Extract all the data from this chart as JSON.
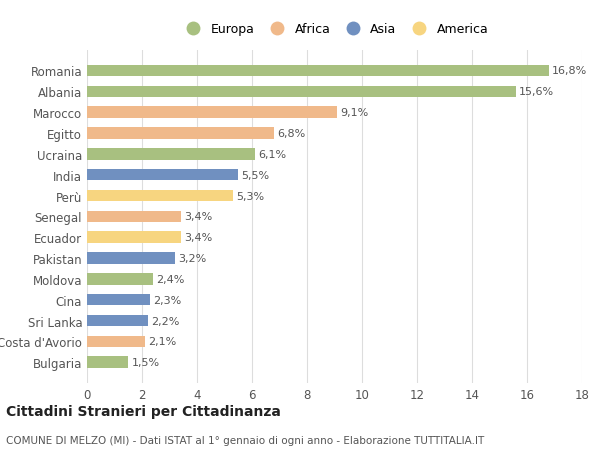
{
  "categories": [
    "Romania",
    "Albania",
    "Marocco",
    "Egitto",
    "Ucraina",
    "India",
    "Perù",
    "Senegal",
    "Ecuador",
    "Pakistan",
    "Moldova",
    "Cina",
    "Sri Lanka",
    "Costa d'Avorio",
    "Bulgaria"
  ],
  "values": [
    16.8,
    15.6,
    9.1,
    6.8,
    6.1,
    5.5,
    5.3,
    3.4,
    3.4,
    3.2,
    2.4,
    2.3,
    2.2,
    2.1,
    1.5
  ],
  "continents": [
    "Europa",
    "Europa",
    "Africa",
    "Africa",
    "Europa",
    "Asia",
    "America",
    "Africa",
    "America",
    "Asia",
    "Europa",
    "Asia",
    "Asia",
    "Africa",
    "Europa"
  ],
  "colors": {
    "Europa": "#a8c080",
    "Africa": "#f0b98a",
    "Asia": "#7090c0",
    "America": "#f7d580"
  },
  "legend_order": [
    "Europa",
    "Africa",
    "Asia",
    "America"
  ],
  "xlim": [
    0,
    18
  ],
  "xticks": [
    0,
    2,
    4,
    6,
    8,
    10,
    12,
    14,
    16,
    18
  ],
  "title": "Cittadini Stranieri per Cittadinanza",
  "subtitle": "COMUNE DI MELZO (MI) - Dati ISTAT al 1° gennaio di ogni anno - Elaborazione TUTTITALIA.IT",
  "background_color": "#ffffff",
  "grid_color": "#dddddd",
  "label_fontsize": 8.5,
  "bar_height": 0.55,
  "value_fontsize": 8,
  "title_fontsize": 10,
  "subtitle_fontsize": 7.5
}
